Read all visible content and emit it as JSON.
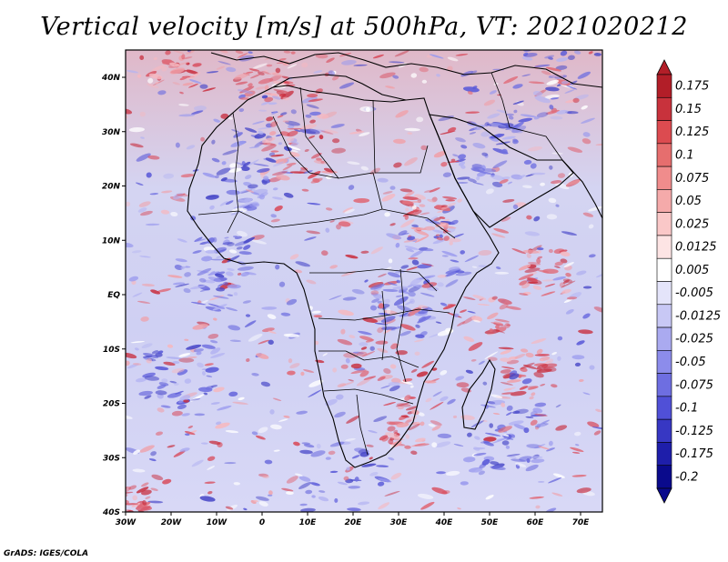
{
  "title": "Vertical velocity [m/s] at 500hPa, VT: 2021020212",
  "credit": "GrADS: IGES/COLA",
  "axes": {
    "lat_ticks": [
      "40N",
      "30N",
      "20N",
      "10N",
      "EQ",
      "10S",
      "20S",
      "30S",
      "40S"
    ],
    "lon_ticks": [
      "30W",
      "20W",
      "10W",
      "0",
      "10E",
      "20E",
      "30E",
      "40E",
      "50E",
      "60E",
      "70E"
    ]
  },
  "colorbar": {
    "labels": [
      "0.175",
      "0.15",
      "0.125",
      "0.1",
      "0.075",
      "0.05",
      "0.025",
      "0.0125",
      "0.005",
      "-0.005",
      "-0.0125",
      "-0.025",
      "-0.05",
      "-0.075",
      "-0.1",
      "-0.125",
      "-0.175",
      "-0.2"
    ],
    "colors": [
      "#b21e28",
      "#c8323c",
      "#dc4b50",
      "#e66e6e",
      "#f08c8c",
      "#f5aaaa",
      "#fac8c8",
      "#fde4e4",
      "#ffffff",
      "#e4e4fa",
      "#c8c8f5",
      "#aaaaf0",
      "#8c8ceb",
      "#6e6ee1",
      "#5050d7",
      "#3737c3",
      "#1e1eaa",
      "#0a0a8c"
    ]
  }
}
